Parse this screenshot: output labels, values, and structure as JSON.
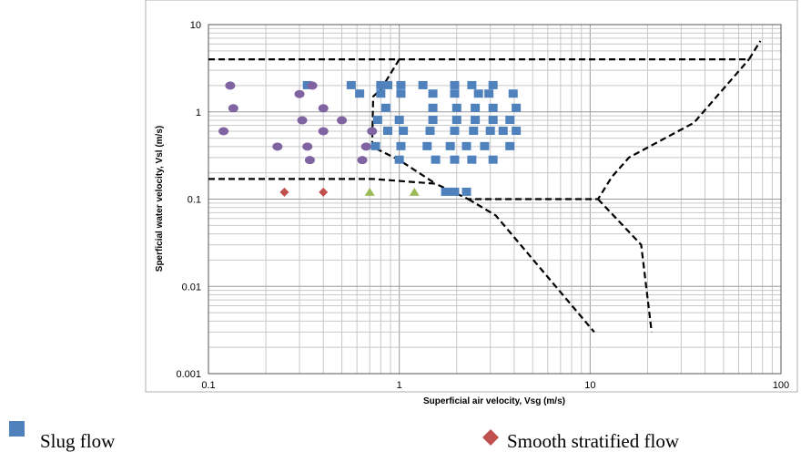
{
  "chart_data": {
    "type": "scatter",
    "title": "",
    "xlabel": "Superficial air velocity, Vsg (m/s)",
    "ylabel": "Sperficial water velocity, Vsl (m/s)",
    "x_scale": "log",
    "y_scale": "log",
    "xlim": [
      0.1,
      100
    ],
    "ylim": [
      0.001,
      10
    ],
    "grid": true,
    "x_ticks": [
      "0.1",
      "1",
      "10",
      "100"
    ],
    "y_ticks": [
      "0.001",
      "0.01",
      "0.1",
      "1",
      "10"
    ],
    "legend_position": "bottom",
    "series": [
      {
        "name": "Slug flow",
        "marker": "square",
        "color": "#4f81bd",
        "points": [
          [
            0.33,
            2.0
          ],
          [
            0.56,
            2.0
          ],
          [
            0.62,
            1.6
          ],
          [
            0.8,
            1.6
          ],
          [
            0.8,
            2.0
          ],
          [
            0.87,
            2.0
          ],
          [
            1.02,
            1.6
          ],
          [
            1.02,
            2.0
          ],
          [
            1.33,
            2.0
          ],
          [
            1.5,
            1.6
          ],
          [
            1.95,
            2.0
          ],
          [
            1.95,
            1.6
          ],
          [
            2.4,
            2.0
          ],
          [
            2.6,
            1.6
          ],
          [
            3.1,
            2.0
          ],
          [
            2.95,
            1.6
          ],
          [
            3.95,
            1.6
          ],
          [
            0.85,
            1.1
          ],
          [
            1.5,
            1.1
          ],
          [
            2.0,
            1.1
          ],
          [
            2.5,
            1.1
          ],
          [
            3.1,
            1.1
          ],
          [
            4.1,
            1.1
          ],
          [
            0.77,
            0.8
          ],
          [
            1.0,
            0.8
          ],
          [
            1.5,
            0.8
          ],
          [
            2.0,
            0.8
          ],
          [
            2.5,
            0.8
          ],
          [
            3.1,
            0.8
          ],
          [
            3.8,
            0.8
          ],
          [
            0.87,
            0.6
          ],
          [
            1.05,
            0.6
          ],
          [
            1.45,
            0.6
          ],
          [
            1.95,
            0.6
          ],
          [
            2.45,
            0.6
          ],
          [
            3.0,
            0.6
          ],
          [
            3.5,
            0.6
          ],
          [
            4.1,
            0.6
          ],
          [
            0.75,
            0.4
          ],
          [
            1.02,
            0.4
          ],
          [
            1.4,
            0.4
          ],
          [
            1.85,
            0.4
          ],
          [
            2.25,
            0.4
          ],
          [
            2.8,
            0.4
          ],
          [
            3.8,
            0.4
          ],
          [
            1.0,
            0.28
          ],
          [
            1.55,
            0.28
          ],
          [
            1.95,
            0.28
          ],
          [
            2.4,
            0.28
          ],
          [
            3.1,
            0.28
          ],
          [
            1.75,
            0.12
          ],
          [
            1.95,
            0.12
          ],
          [
            2.25,
            0.12
          ]
        ]
      },
      {
        "name": "Smooth stratified flow",
        "marker": "diamond",
        "color": "#c0504d",
        "points": [
          [
            0.25,
            0.12
          ],
          [
            0.4,
            0.12
          ]
        ]
      },
      {
        "name": "",
        "marker": "circle",
        "color": "#8064a2",
        "points": [
          [
            0.13,
            2.0
          ],
          [
            0.3,
            1.6
          ],
          [
            0.35,
            2.0
          ],
          [
            0.135,
            1.1
          ],
          [
            0.4,
            1.1
          ],
          [
            0.12,
            0.6
          ],
          [
            0.31,
            0.8
          ],
          [
            0.5,
            0.8
          ],
          [
            0.4,
            0.6
          ],
          [
            0.23,
            0.4
          ],
          [
            0.33,
            0.4
          ],
          [
            0.67,
            0.4
          ],
          [
            0.72,
            0.6
          ],
          [
            0.34,
            0.28
          ],
          [
            0.64,
            0.28
          ]
        ]
      },
      {
        "name": "",
        "marker": "triangle",
        "color": "#9bbb59",
        "points": [
          [
            0.7,
            0.12
          ],
          [
            1.2,
            0.12
          ]
        ]
      }
    ],
    "transition_lines": [
      [
        [
          0.1,
          4.0
        ],
        [
          68,
          4.0
        ],
        [
          78,
          6.5
        ]
      ],
      [
        [
          0.1,
          0.17
        ],
        [
          0.73,
          0.17
        ],
        [
          1.55,
          0.15
        ],
        [
          2.3,
          0.1
        ],
        [
          11.0,
          0.1
        ],
        [
          13.0,
          0.18
        ],
        [
          16.0,
          0.3
        ],
        [
          35,
          0.75
        ],
        [
          68,
          4.0
        ]
      ],
      [
        [
          1.0,
          4.0
        ],
        [
          0.8,
          1.8
        ],
        [
          0.73,
          1.5
        ],
        [
          0.72,
          0.4
        ],
        [
          1.0,
          0.28
        ],
        [
          1.55,
          0.15
        ]
      ],
      [
        [
          2.3,
          0.1
        ],
        [
          3.2,
          0.065
        ],
        [
          10.5,
          0.003
        ]
      ],
      [
        [
          11.0,
          0.1
        ],
        [
          18.5,
          0.03
        ],
        [
          21,
          0.003
        ]
      ]
    ]
  }
}
